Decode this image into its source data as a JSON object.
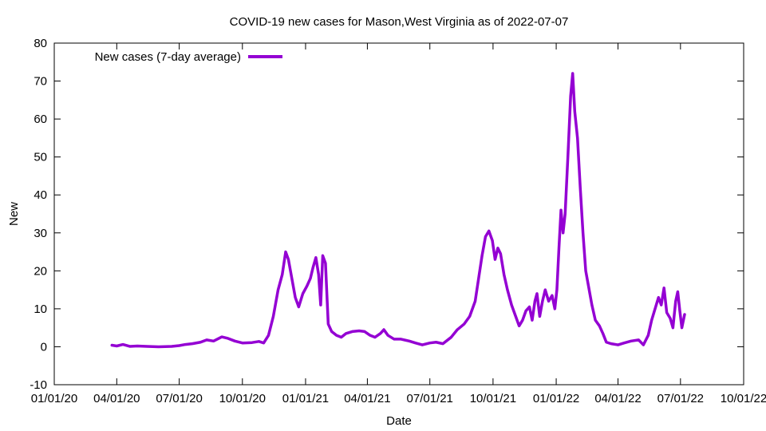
{
  "chart_data": {
    "type": "line",
    "title": "COVID-19 new cases for Mason,West Virginia as of 2022-07-07",
    "xlabel": "Date",
    "ylabel": "New",
    "xlim": [
      "2020-01-01",
      "2022-10-01"
    ],
    "ylim": [
      -10,
      80
    ],
    "grid": false,
    "legend_placement": "top-left",
    "x_ticks": [
      "2020-01-01",
      "2020-04-01",
      "2020-07-01",
      "2020-10-01",
      "2021-01-01",
      "2021-04-01",
      "2021-07-01",
      "2021-10-01",
      "2022-01-01",
      "2022-04-01",
      "2022-07-01",
      "2022-10-01"
    ],
    "x_tick_labels": [
      "01/01/20",
      "04/01/20",
      "07/01/20",
      "10/01/20",
      "01/01/21",
      "04/01/21",
      "07/01/21",
      "10/01/21",
      "01/01/22",
      "04/01/22",
      "07/01/22",
      "10/01/22"
    ],
    "y_ticks": [
      -10,
      0,
      10,
      20,
      30,
      40,
      50,
      60,
      70,
      80
    ],
    "series": [
      {
        "name": "New cases (7-day average)",
        "color": "#9400d3",
        "points": [
          [
            "2020-03-25",
            0.4
          ],
          [
            "2020-04-01",
            0.2
          ],
          [
            "2020-04-10",
            0.6
          ],
          [
            "2020-04-20",
            0.1
          ],
          [
            "2020-05-01",
            0.2
          ],
          [
            "2020-05-15",
            0.1
          ],
          [
            "2020-06-01",
            0.0
          ],
          [
            "2020-06-20",
            0.1
          ],
          [
            "2020-07-01",
            0.3
          ],
          [
            "2020-07-10",
            0.6
          ],
          [
            "2020-07-20",
            0.8
          ],
          [
            "2020-08-01",
            1.2
          ],
          [
            "2020-08-10",
            1.8
          ],
          [
            "2020-08-20",
            1.5
          ],
          [
            "2020-09-01",
            2.6
          ],
          [
            "2020-09-10",
            2.2
          ],
          [
            "2020-09-20",
            1.5
          ],
          [
            "2020-10-01",
            1.0
          ],
          [
            "2020-10-15",
            1.1
          ],
          [
            "2020-10-25",
            1.4
          ],
          [
            "2020-11-01",
            1.0
          ],
          [
            "2020-11-08",
            3.0
          ],
          [
            "2020-11-15",
            8.0
          ],
          [
            "2020-11-22",
            15.0
          ],
          [
            "2020-11-28",
            19.0
          ],
          [
            "2020-12-03",
            25.0
          ],
          [
            "2020-12-07",
            23.0
          ],
          [
            "2020-12-12",
            18.0
          ],
          [
            "2020-12-17",
            13.0
          ],
          [
            "2020-12-22",
            10.5
          ],
          [
            "2020-12-28",
            14.0
          ],
          [
            "2021-01-03",
            16.0
          ],
          [
            "2021-01-08",
            18.0
          ],
          [
            "2021-01-12",
            21.0
          ],
          [
            "2021-01-16",
            23.5
          ],
          [
            "2021-01-20",
            19.0
          ],
          [
            "2021-01-23",
            11.0
          ],
          [
            "2021-01-26",
            24.0
          ],
          [
            "2021-01-30",
            22.0
          ],
          [
            "2021-02-03",
            6.0
          ],
          [
            "2021-02-08",
            4.0
          ],
          [
            "2021-02-15",
            3.0
          ],
          [
            "2021-02-22",
            2.5
          ],
          [
            "2021-03-01",
            3.5
          ],
          [
            "2021-03-10",
            4.0
          ],
          [
            "2021-03-20",
            4.2
          ],
          [
            "2021-03-28",
            4.0
          ],
          [
            "2021-04-05",
            3.0
          ],
          [
            "2021-04-12",
            2.5
          ],
          [
            "2021-04-20",
            3.5
          ],
          [
            "2021-04-25",
            4.5
          ],
          [
            "2021-05-01",
            3.0
          ],
          [
            "2021-05-10",
            2.0
          ],
          [
            "2021-05-20",
            2.0
          ],
          [
            "2021-06-01",
            1.5
          ],
          [
            "2021-06-10",
            1.0
          ],
          [
            "2021-06-20",
            0.5
          ],
          [
            "2021-07-01",
            1.0
          ],
          [
            "2021-07-10",
            1.2
          ],
          [
            "2021-07-20",
            0.8
          ],
          [
            "2021-08-01",
            2.5
          ],
          [
            "2021-08-10",
            4.5
          ],
          [
            "2021-08-20",
            6.0
          ],
          [
            "2021-08-28",
            8.0
          ],
          [
            "2021-09-05",
            12.0
          ],
          [
            "2021-09-10",
            18.0
          ],
          [
            "2021-09-15",
            24.0
          ],
          [
            "2021-09-20",
            29.0
          ],
          [
            "2021-09-25",
            30.5
          ],
          [
            "2021-09-30",
            28.0
          ],
          [
            "2021-10-04",
            23.0
          ],
          [
            "2021-10-08",
            26.0
          ],
          [
            "2021-10-12",
            24.5
          ],
          [
            "2021-10-17",
            19.0
          ],
          [
            "2021-10-22",
            15.0
          ],
          [
            "2021-10-28",
            11.0
          ],
          [
            "2021-11-03",
            8.0
          ],
          [
            "2021-11-08",
            5.5
          ],
          [
            "2021-11-13",
            7.0
          ],
          [
            "2021-11-18",
            9.5
          ],
          [
            "2021-11-23",
            10.5
          ],
          [
            "2021-11-27",
            7.0
          ],
          [
            "2021-12-01",
            12.0
          ],
          [
            "2021-12-04",
            14.0
          ],
          [
            "2021-12-08",
            8.0
          ],
          [
            "2021-12-12",
            12.0
          ],
          [
            "2021-12-16",
            15.0
          ],
          [
            "2021-12-21",
            12.0
          ],
          [
            "2021-12-26",
            13.5
          ],
          [
            "2021-12-30",
            10.0
          ],
          [
            "2022-01-02",
            15.0
          ],
          [
            "2022-01-05",
            26.0
          ],
          [
            "2022-01-08",
            36.0
          ],
          [
            "2022-01-11",
            30.0
          ],
          [
            "2022-01-14",
            35.0
          ],
          [
            "2022-01-18",
            50.0
          ],
          [
            "2022-01-22",
            66.0
          ],
          [
            "2022-01-25",
            72.0
          ],
          [
            "2022-01-28",
            62.0
          ],
          [
            "2022-02-01",
            55.0
          ],
          [
            "2022-02-05",
            42.0
          ],
          [
            "2022-02-09",
            30.0
          ],
          [
            "2022-02-13",
            20.0
          ],
          [
            "2022-02-17",
            16.0
          ],
          [
            "2022-02-22",
            11.0
          ],
          [
            "2022-02-27",
            7.0
          ],
          [
            "2022-03-05",
            5.5
          ],
          [
            "2022-03-10",
            3.5
          ],
          [
            "2022-03-15",
            1.2
          ],
          [
            "2022-03-22",
            0.8
          ],
          [
            "2022-04-01",
            0.5
          ],
          [
            "2022-04-10",
            1.0
          ],
          [
            "2022-04-20",
            1.5
          ],
          [
            "2022-05-01",
            1.8
          ],
          [
            "2022-05-08",
            0.5
          ],
          [
            "2022-05-15",
            3.0
          ],
          [
            "2022-05-20",
            7.0
          ],
          [
            "2022-05-25",
            10.0
          ],
          [
            "2022-05-30",
            13.0
          ],
          [
            "2022-06-03",
            11.0
          ],
          [
            "2022-06-07",
            15.5
          ],
          [
            "2022-06-11",
            9.0
          ],
          [
            "2022-06-16",
            7.5
          ],
          [
            "2022-06-20",
            5.0
          ],
          [
            "2022-06-24",
            12.0
          ],
          [
            "2022-06-27",
            14.5
          ],
          [
            "2022-06-30",
            9.5
          ],
          [
            "2022-07-03",
            5.0
          ],
          [
            "2022-07-07",
            8.5
          ]
        ]
      }
    ]
  }
}
